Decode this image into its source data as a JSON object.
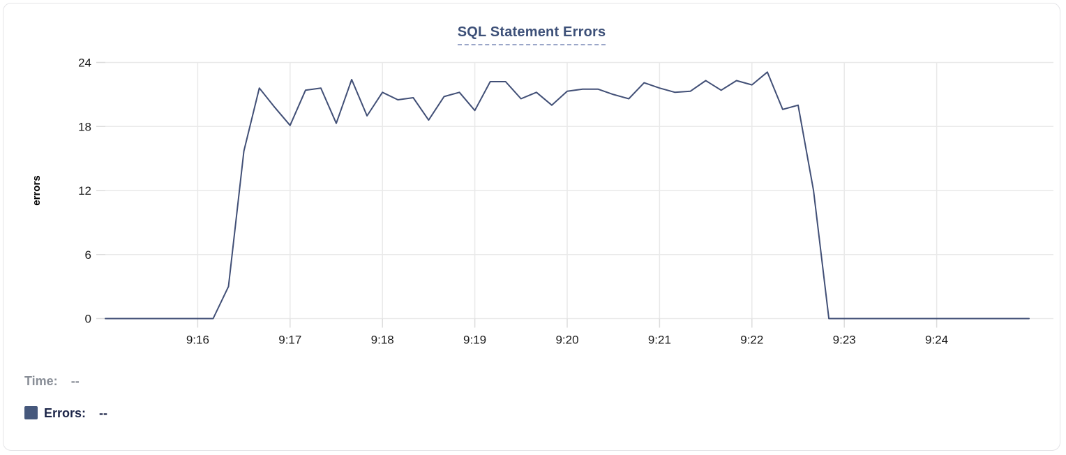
{
  "card": {
    "colors": {
      "card_border": "#e4e4e7",
      "title": "#3d5078",
      "title_underline": "#9aa6c8",
      "line": "#414f76",
      "grid": "#e9e9e9",
      "tick": "#dcdcdc",
      "axis_label_text": "#1a1a1a",
      "y_axis_title_text": "#000000",
      "tooltip_time_text": "#898e97",
      "tooltip_errors_text": "#1b2447",
      "legend_swatch": "#46587c"
    }
  },
  "tooltip": {
    "time_label": "Time:",
    "time_value": "--",
    "errors_label": "Errors:",
    "errors_value": "--"
  },
  "chart_data": {
    "type": "line",
    "title": "SQL Statement Errors",
    "xlabel": "",
    "ylabel": "errors",
    "ylim": [
      0,
      24
    ],
    "y_ticks": [
      0,
      6,
      12,
      18,
      24
    ],
    "x_ticks": [
      "9:16",
      "9:17",
      "9:18",
      "9:19",
      "9:20",
      "9:21",
      "9:22",
      "9:23",
      "9:24"
    ],
    "x_domain": [
      "9:15:00",
      "9:25:00"
    ],
    "grid": true,
    "legend_position": "bottom-left",
    "series": [
      {
        "name": "Errors",
        "color": "#414f76",
        "points": [
          [
            "9:15:00",
            0
          ],
          [
            "9:15:10",
            0
          ],
          [
            "9:15:20",
            0
          ],
          [
            "9:15:30",
            0
          ],
          [
            "9:15:40",
            0
          ],
          [
            "9:15:50",
            0
          ],
          [
            "9:16:00",
            0
          ],
          [
            "9:16:10",
            0
          ],
          [
            "9:16:20",
            3
          ],
          [
            "9:16:30",
            15.7
          ],
          [
            "9:16:40",
            21.6
          ],
          [
            "9:16:50",
            19.8
          ],
          [
            "9:17:00",
            18.1
          ],
          [
            "9:17:10",
            21.4
          ],
          [
            "9:17:20",
            21.6
          ],
          [
            "9:17:30",
            18.3
          ],
          [
            "9:17:40",
            22.4
          ],
          [
            "9:17:50",
            19.0
          ],
          [
            "9:18:00",
            21.2
          ],
          [
            "9:18:10",
            20.5
          ],
          [
            "9:18:20",
            20.7
          ],
          [
            "9:18:30",
            18.6
          ],
          [
            "9:18:40",
            20.8
          ],
          [
            "9:18:50",
            21.2
          ],
          [
            "9:19:00",
            19.5
          ],
          [
            "9:19:10",
            22.2
          ],
          [
            "9:19:20",
            22.2
          ],
          [
            "9:19:30",
            20.6
          ],
          [
            "9:19:40",
            21.2
          ],
          [
            "9:19:50",
            20.0
          ],
          [
            "9:20:00",
            21.3
          ],
          [
            "9:20:10",
            21.5
          ],
          [
            "9:20:20",
            21.5
          ],
          [
            "9:20:30",
            21.0
          ],
          [
            "9:20:40",
            20.6
          ],
          [
            "9:20:50",
            22.1
          ],
          [
            "9:21:00",
            21.6
          ],
          [
            "9:21:10",
            21.2
          ],
          [
            "9:21:20",
            21.3
          ],
          [
            "9:21:30",
            22.3
          ],
          [
            "9:21:40",
            21.4
          ],
          [
            "9:21:50",
            22.3
          ],
          [
            "9:22:00",
            21.9
          ],
          [
            "9:22:10",
            23.1
          ],
          [
            "9:22:20",
            19.6
          ],
          [
            "9:22:30",
            20.0
          ],
          [
            "9:22:40",
            12.0
          ],
          [
            "9:22:50",
            0
          ],
          [
            "9:23:00",
            0
          ],
          [
            "9:23:10",
            0
          ],
          [
            "9:23:20",
            0
          ],
          [
            "9:23:30",
            0
          ],
          [
            "9:23:40",
            0
          ],
          [
            "9:23:50",
            0
          ],
          [
            "9:24:00",
            0
          ],
          [
            "9:24:10",
            0
          ],
          [
            "9:24:20",
            0
          ],
          [
            "9:24:30",
            0
          ],
          [
            "9:24:40",
            0
          ],
          [
            "9:24:50",
            0
          ],
          [
            "9:25:00",
            0
          ]
        ]
      }
    ]
  }
}
